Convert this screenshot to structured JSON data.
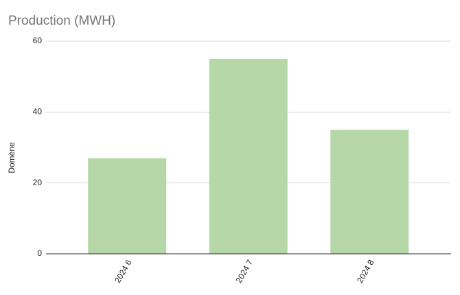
{
  "chart_data": {
    "type": "bar",
    "title": "Production (MWH)",
    "y_label": "Domène",
    "categories": [
      "2024 6",
      "2024 7",
      "2024 8"
    ],
    "values": [
      27,
      55,
      35
    ],
    "color": "#b6d7a8",
    "ylim": [
      0,
      60
    ],
    "yticks": [
      0,
      20,
      40,
      60
    ],
    "grid": true
  }
}
